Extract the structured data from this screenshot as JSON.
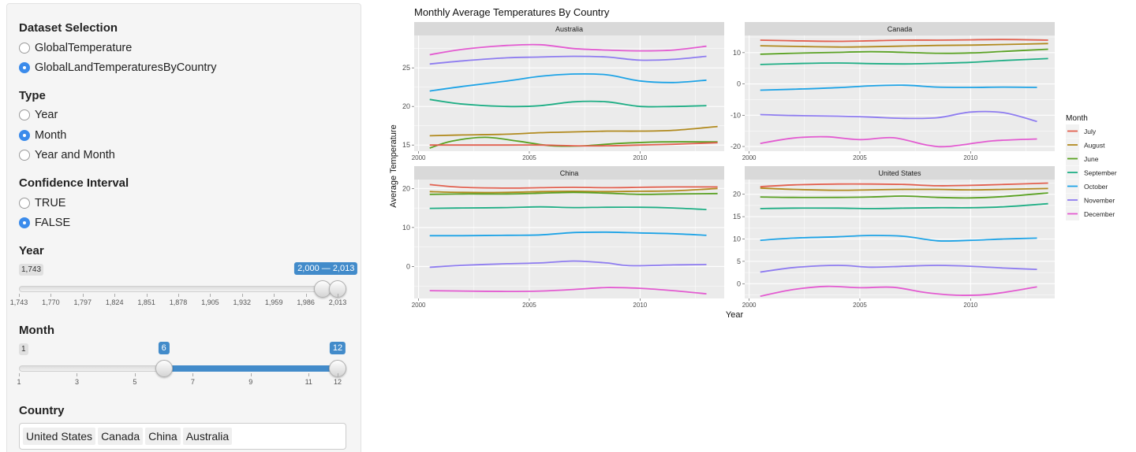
{
  "sidebar": {
    "dataset": {
      "title": "Dataset Selection",
      "options": [
        {
          "label": "GlobalTemperature",
          "selected": false
        },
        {
          "label": "GlobalLandTemperaturesByCountry",
          "selected": true
        }
      ]
    },
    "type": {
      "title": "Type",
      "options": [
        {
          "label": "Year",
          "selected": false
        },
        {
          "label": "Month",
          "selected": true
        },
        {
          "label": "Year and Month",
          "selected": false
        }
      ]
    },
    "confidence": {
      "title": "Confidence Interval",
      "options": [
        {
          "label": "TRUE",
          "selected": false
        },
        {
          "label": "FALSE",
          "selected": true
        }
      ]
    },
    "year_slider": {
      "title": "Year",
      "min_label": "1,743",
      "range_label": "2,000 — 2,013",
      "min": 1743,
      "max": 2013,
      "from": 2000,
      "to": 2013,
      "ticks": [
        "1,743",
        "1,770",
        "1,797",
        "1,824",
        "1,851",
        "1,878",
        "1,905",
        "1,932",
        "1,959",
        "1,986",
        "2,013"
      ]
    },
    "month_slider": {
      "title": "Month",
      "min_label": "1",
      "from_label": "6",
      "to_label": "12",
      "min": 1,
      "max": 12,
      "from": 6,
      "to": 12,
      "ticks": [
        "1",
        "3",
        "5",
        "7",
        "9",
        "11",
        "12"
      ]
    },
    "country": {
      "title": "Country",
      "selected": [
        "United States",
        "Canada",
        "China",
        "Australia"
      ]
    }
  },
  "chart_data": {
    "type": "line",
    "title": "Monthly Average Temperatures By Country",
    "xlabel": "Year",
    "ylabel": "Average Temperature",
    "legend_title": "Month",
    "legend_position": "right",
    "legend": [
      {
        "name": "July",
        "color": "#e2604f"
      },
      {
        "name": "August",
        "color": "#b18a1e"
      },
      {
        "name": "June",
        "color": "#5aa123"
      },
      {
        "name": "September",
        "color": "#1fae85"
      },
      {
        "name": "October",
        "color": "#1da3e6"
      },
      {
        "name": "November",
        "color": "#8e7cf0"
      },
      {
        "name": "December",
        "color": "#e35bd1"
      }
    ],
    "x_ticks": [
      2000,
      2005,
      2010
    ],
    "xlim": [
      1999.8,
      2013.8
    ],
    "grid": true,
    "panels": [
      {
        "name": "Australia",
        "ylim": [
          14.2,
          29.2
        ],
        "y_ticks": [
          15,
          20,
          25
        ],
        "series": [
          {
            "name": "December",
            "x": [
              2000.5,
              2002,
              2004,
              2005.5,
              2007,
              2008.5,
              2010,
              2011.5,
              2013
            ],
            "y": [
              26.7,
              27.4,
              27.9,
              28.0,
              27.5,
              27.3,
              27.2,
              27.3,
              27.8
            ]
          },
          {
            "name": "November",
            "x": [
              2000.5,
              2002,
              2004,
              2005.5,
              2007,
              2008.5,
              2010,
              2011.5,
              2013
            ],
            "y": [
              25.5,
              25.9,
              26.3,
              26.4,
              26.5,
              26.4,
              26.0,
              26.1,
              26.5
            ]
          },
          {
            "name": "October",
            "x": [
              2000.5,
              2002,
              2004,
              2005.5,
              2007,
              2008.5,
              2010,
              2011.5,
              2013
            ],
            "y": [
              22.0,
              22.6,
              23.3,
              23.9,
              24.2,
              24.1,
              23.3,
              23.1,
              23.4
            ]
          },
          {
            "name": "September",
            "x": [
              2000.5,
              2002,
              2004,
              2005.5,
              2007,
              2008.5,
              2010,
              2011.5,
              2013
            ],
            "y": [
              20.9,
              20.3,
              20.0,
              20.1,
              20.6,
              20.6,
              20.0,
              20.0,
              20.1
            ]
          },
          {
            "name": "August",
            "x": [
              2000.5,
              2002,
              2004,
              2005.5,
              2007,
              2008.5,
              2010,
              2011.5,
              2013.5
            ],
            "y": [
              16.2,
              16.3,
              16.4,
              16.6,
              16.7,
              16.8,
              16.8,
              16.9,
              17.4
            ]
          },
          {
            "name": "June",
            "x": [
              2000.5,
              2001.5,
              2003,
              2004.5,
              2006,
              2007.5,
              2009,
              2011,
              2013.5
            ],
            "y": [
              14.6,
              15.5,
              16.0,
              15.5,
              14.9,
              14.9,
              15.2,
              15.4,
              15.4
            ]
          },
          {
            "name": "July",
            "x": [
              2000.5,
              2002,
              2004,
              2005.5,
              2007,
              2008.5,
              2010,
              2011.5,
              2013.5
            ],
            "y": [
              15.0,
              15.0,
              15.0,
              15.0,
              14.9,
              14.9,
              15.0,
              15.1,
              15.3
            ]
          }
        ]
      },
      {
        "name": "Canada",
        "ylim": [
          -21.5,
          15.5
        ],
        "y_ticks": [
          -20,
          -10,
          0,
          10
        ],
        "series": [
          {
            "name": "July",
            "x": [
              2000.5,
              2002,
              2004,
              2005.5,
              2007,
              2008.5,
              2010,
              2011.5,
              2013.5
            ],
            "y": [
              14.0,
              13.8,
              13.6,
              13.8,
              14.0,
              14.0,
              14.1,
              14.2,
              14.0
            ]
          },
          {
            "name": "August",
            "x": [
              2000.5,
              2002,
              2004,
              2005.5,
              2007,
              2008.5,
              2010,
              2011.5,
              2013.5
            ],
            "y": [
              12.2,
              12.0,
              11.8,
              11.9,
              12.1,
              12.3,
              12.4,
              12.6,
              12.9
            ]
          },
          {
            "name": "June",
            "x": [
              2000.5,
              2002,
              2004,
              2005.5,
              2007,
              2008.5,
              2010,
              2011.5,
              2013.5
            ],
            "y": [
              9.5,
              9.8,
              10.1,
              10.3,
              10.1,
              9.8,
              9.9,
              10.4,
              11.1
            ]
          },
          {
            "name": "September",
            "x": [
              2000.5,
              2002,
              2004,
              2005.5,
              2007,
              2008.5,
              2010,
              2011.5,
              2013.5
            ],
            "y": [
              6.2,
              6.5,
              6.7,
              6.5,
              6.4,
              6.6,
              6.9,
              7.5,
              8.1
            ]
          },
          {
            "name": "October",
            "x": [
              2000.5,
              2002,
              2004,
              2005.5,
              2007,
              2008.5,
              2010,
              2011.5,
              2013
            ],
            "y": [
              -2.0,
              -1.7,
              -1.2,
              -0.6,
              -0.4,
              -1.0,
              -1.1,
              -1.0,
              -1.1
            ]
          },
          {
            "name": "November",
            "x": [
              2000.5,
              2002,
              2004,
              2005.5,
              2007,
              2008.5,
              2010,
              2011.5,
              2013
            ],
            "y": [
              -9.8,
              -10.1,
              -10.3,
              -10.6,
              -11.0,
              -10.8,
              -9.0,
              -9.2,
              -12.0
            ]
          },
          {
            "name": "December",
            "x": [
              2000.5,
              2002,
              2003.5,
              2005,
              2006.5,
              2008,
              2009,
              2011,
              2013
            ],
            "y": [
              -19.0,
              -17.3,
              -16.9,
              -17.8,
              -17.2,
              -19.5,
              -20.0,
              -18.2,
              -17.6
            ]
          }
        ]
      },
      {
        "name": "China",
        "ylim": [
          -8.2,
          22.3
        ],
        "y_ticks": [
          0,
          10,
          20
        ],
        "series": [
          {
            "name": "July",
            "x": [
              2000.5,
              2002,
              2004,
              2005.5,
              2007,
              2008.5,
              2010,
              2011.5,
              2013.5
            ],
            "y": [
              21.0,
              20.3,
              20.1,
              20.2,
              20.3,
              20.2,
              20.3,
              20.4,
              20.4
            ]
          },
          {
            "name": "August",
            "x": [
              2000.5,
              2002,
              2004,
              2005.5,
              2007,
              2008.5,
              2010,
              2011.5,
              2013.5
            ],
            "y": [
              19.2,
              19.0,
              19.0,
              19.2,
              19.3,
              19.2,
              19.3,
              19.4,
              20.0
            ]
          },
          {
            "name": "June",
            "x": [
              2000.5,
              2002,
              2004,
              2005.5,
              2007,
              2008.5,
              2010,
              2011.5,
              2013.5
            ],
            "y": [
              18.5,
              18.6,
              18.6,
              18.8,
              19.0,
              18.8,
              18.5,
              18.6,
              18.7
            ]
          },
          {
            "name": "September",
            "x": [
              2000.5,
              2002,
              2004,
              2005.5,
              2007,
              2008.5,
              2010,
              2011.5,
              2013
            ],
            "y": [
              14.9,
              15.0,
              15.1,
              15.3,
              15.1,
              15.2,
              15.2,
              15.0,
              14.6
            ]
          },
          {
            "name": "October",
            "x": [
              2000.5,
              2002,
              2004,
              2005.5,
              2007,
              2008.5,
              2010,
              2011.5,
              2013
            ],
            "y": [
              7.9,
              7.9,
              8.0,
              8.1,
              8.7,
              8.8,
              8.6,
              8.4,
              8.0
            ]
          },
          {
            "name": "November",
            "x": [
              2000.5,
              2002,
              2004,
              2005.5,
              2007,
              2008.5,
              2009.5,
              2011.5,
              2013
            ],
            "y": [
              -0.2,
              0.3,
              0.7,
              0.9,
              1.4,
              0.9,
              0.2,
              0.4,
              0.5
            ]
          },
          {
            "name": "December",
            "x": [
              2000.5,
              2002,
              2004,
              2005.5,
              2007,
              2008.5,
              2010,
              2011.5,
              2013
            ],
            "y": [
              -6.2,
              -6.3,
              -6.4,
              -6.3,
              -5.9,
              -5.4,
              -5.6,
              -6.2,
              -7.0
            ]
          }
        ]
      },
      {
        "name": "United States",
        "ylim": [
          -3.3,
          23.3
        ],
        "y_ticks": [
          0,
          5,
          10,
          15,
          20
        ],
        "series": [
          {
            "name": "July",
            "x": [
              2000.5,
              2002,
              2004,
              2005.5,
              2007,
              2008.5,
              2010,
              2011.5,
              2013.5
            ],
            "y": [
              21.7,
              22.1,
              22.3,
              22.3,
              22.2,
              21.9,
              22.0,
              22.2,
              22.5
            ]
          },
          {
            "name": "August",
            "x": [
              2000.5,
              2002,
              2004,
              2005.5,
              2007,
              2008.5,
              2010,
              2011.5,
              2013.5
            ],
            "y": [
              21.4,
              21.1,
              20.9,
              21.0,
              21.1,
              21.1,
              21.0,
              21.1,
              21.3
            ]
          },
          {
            "name": "June",
            "x": [
              2000.5,
              2002,
              2004,
              2005.5,
              2007,
              2008.5,
              2010,
              2011.5,
              2013.5
            ],
            "y": [
              19.4,
              19.3,
              19.3,
              19.4,
              19.6,
              19.3,
              19.2,
              19.5,
              20.3
            ]
          },
          {
            "name": "September",
            "x": [
              2000.5,
              2002,
              2004,
              2005.5,
              2007,
              2008.5,
              2010,
              2011.5,
              2013.5
            ],
            "y": [
              16.8,
              16.9,
              16.9,
              16.8,
              16.9,
              17.0,
              17.0,
              17.2,
              17.9
            ]
          },
          {
            "name": "October",
            "x": [
              2000.5,
              2002,
              2004,
              2005.5,
              2007,
              2008.5,
              2010,
              2011.5,
              2013
            ],
            "y": [
              9.7,
              10.2,
              10.5,
              10.8,
              10.6,
              9.6,
              9.7,
              10.0,
              10.2
            ]
          },
          {
            "name": "November",
            "x": [
              2000.5,
              2002,
              2004,
              2005.5,
              2007,
              2008.5,
              2010,
              2011.5,
              2013
            ],
            "y": [
              2.6,
              3.6,
              4.1,
              3.7,
              3.9,
              4.1,
              3.9,
              3.5,
              3.2
            ]
          },
          {
            "name": "December",
            "x": [
              2000.5,
              2002,
              2003.5,
              2005,
              2006.5,
              2008,
              2009.5,
              2011,
              2013
            ],
            "y": [
              -2.8,
              -1.3,
              -0.6,
              -0.9,
              -0.8,
              -2.0,
              -2.6,
              -2.3,
              -0.7
            ]
          }
        ]
      }
    ]
  }
}
